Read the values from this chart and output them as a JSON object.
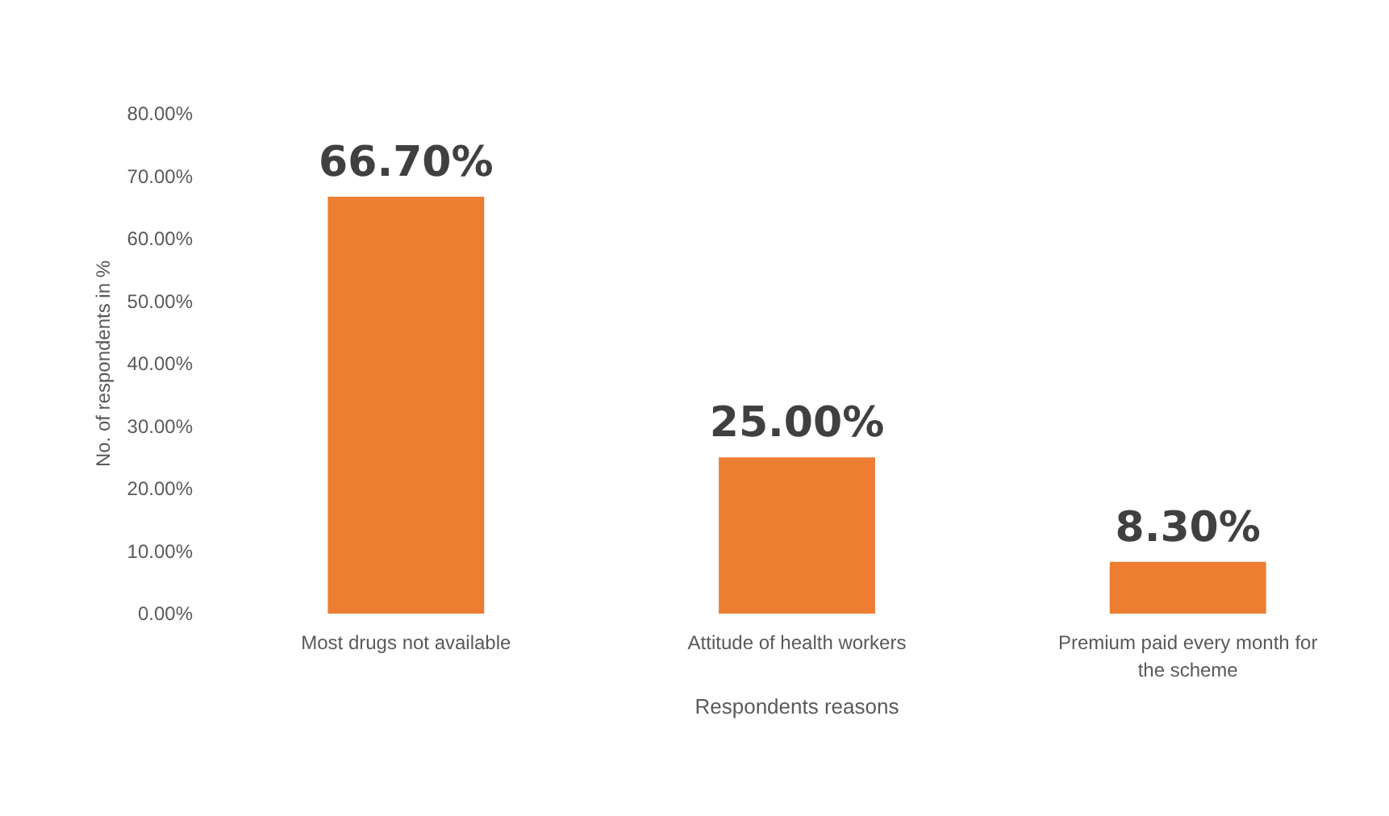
{
  "chart_data": {
    "type": "bar",
    "xlabel": "Respondents reasons",
    "ylabel": "No. of respondents in %",
    "categories": [
      "Most drugs not available",
      "Attitude of health workers",
      "Premium paid every month for the scheme"
    ],
    "values": [
      66.7,
      25,
      8.3
    ],
    "color": "#ed7d31",
    "value_labels": [
      "66.70%",
      "25.00%",
      "8.30%"
    ],
    "ylim": [
      0,
      80
    ],
    "yticks": [
      {
        "value": 0,
        "label": "0.00%"
      },
      {
        "value": 10,
        "label": "10.00%"
      },
      {
        "value": 20,
        "label": "20.00%"
      },
      {
        "value": 30,
        "label": "30.00%"
      },
      {
        "value": 40,
        "label": "40.00%"
      },
      {
        "value": 50,
        "label": "50.00%"
      },
      {
        "value": 60,
        "label": "60.00%"
      },
      {
        "value": 70,
        "label": "70.00%"
      },
      {
        "value": 80,
        "label": "80.00%"
      }
    ],
    "grid": false
  }
}
